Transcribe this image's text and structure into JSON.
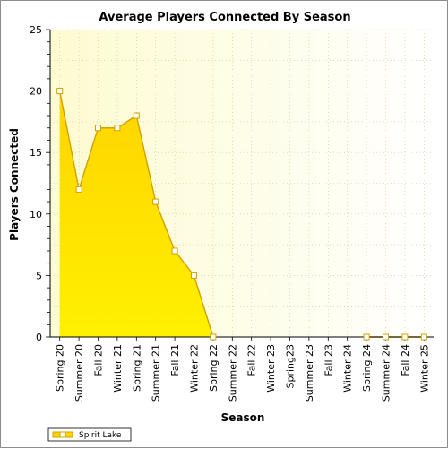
{
  "chart_data": {
    "type": "area",
    "title": "Average Players Connected By Season",
    "xlabel": "Season",
    "ylabel": "Players Connected",
    "ylim": [
      0,
      25
    ],
    "yticks": [
      0,
      5,
      10,
      15,
      20,
      25
    ],
    "grid": true,
    "legend_position": "bottom-left",
    "categories": [
      "Spring 20",
      "Summer 20",
      "Fall 20",
      "Winter 21",
      "Spring 21",
      "Summer 21",
      "Fall 21",
      "Winter 22",
      "Spring 22",
      "Summer 22",
      "Fall 22",
      "Winter 23",
      "Spring23",
      "Summer 23",
      "Fall 23",
      "Winter 24",
      "Spring 24",
      "Summer 24",
      "Fall 24",
      "Winter 25"
    ],
    "series": [
      {
        "name": "Spirit Lake",
        "values": [
          20,
          12,
          17,
          17,
          18,
          11,
          7,
          5,
          0,
          null,
          null,
          null,
          null,
          null,
          null,
          null,
          0,
          0,
          0,
          0
        ],
        "color": "#ffd700"
      }
    ]
  },
  "colors": {
    "plot_bg_left": "#fdfbd0",
    "plot_bg_right": "#ffffff",
    "area_top": "#ffd400",
    "area_bottom": "#fff000",
    "line": "#d4a000",
    "marker_fill": "#ffffff",
    "grid": "#c8c8a0"
  }
}
